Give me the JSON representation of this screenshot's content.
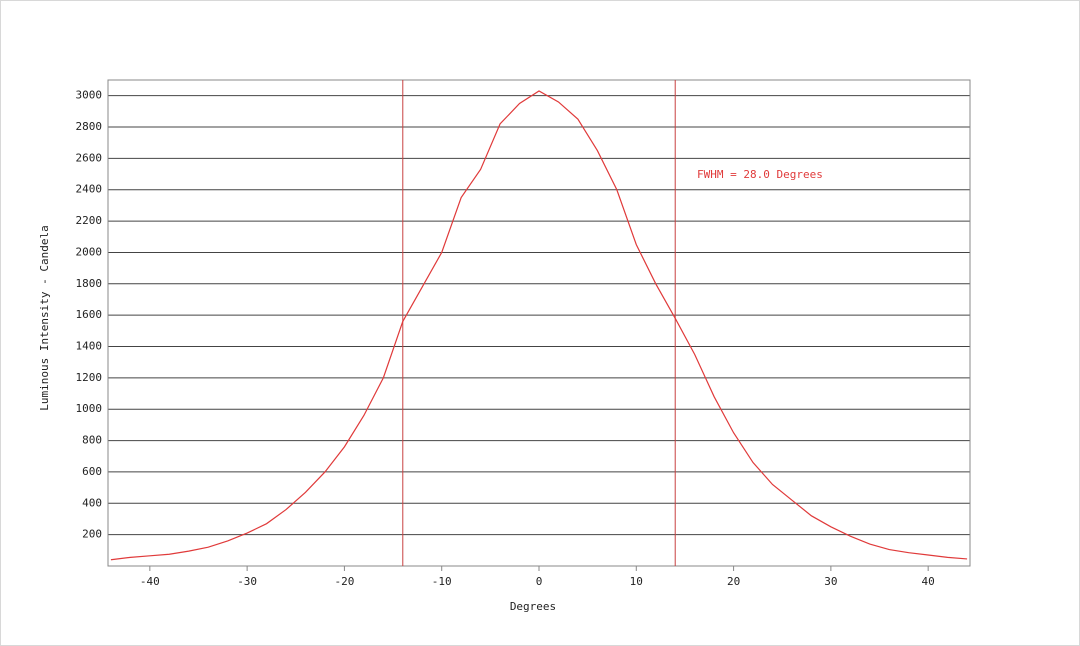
{
  "chart_data": {
    "type": "line",
    "x_label": "Degrees",
    "y_label": "Luminous Intensity - Candela",
    "annotation": "FWHM = 28.0 Degrees",
    "x": [
      -44,
      -42,
      -40,
      -38,
      -36,
      -34,
      -32,
      -30,
      -28,
      -26,
      -24,
      -22,
      -20,
      -18,
      -16,
      -14,
      -12,
      -10,
      -8,
      -6,
      -4,
      -2,
      0,
      2,
      4,
      6,
      8,
      10,
      12,
      14,
      16,
      18,
      20,
      22,
      24,
      26,
      28,
      30,
      32,
      34,
      36,
      38,
      40,
      42,
      44
    ],
    "series": [
      {
        "color": "#e03a3a",
        "values": [
          40,
          55,
          65,
          75,
          95,
          120,
          160,
          210,
          270,
          360,
          470,
          600,
          760,
          960,
          1200,
          1560,
          1780,
          2000,
          2350,
          2530,
          2820,
          2950,
          3030,
          2960,
          2850,
          2650,
          2400,
          2050,
          1800,
          1580,
          1350,
          1080,
          850,
          660,
          520,
          420,
          320,
          250,
          190,
          140,
          105,
          85,
          70,
          55,
          45
        ]
      }
    ],
    "fwhm_lines": [
      -14,
      14
    ],
    "fwhm_color": "#c84040",
    "xlim": [
      -44.3,
      44.3
    ],
    "ylim": [
      0,
      3100
    ],
    "xticks": [
      -40,
      -30,
      -20,
      -10,
      0,
      10,
      20,
      30,
      40
    ],
    "yticks": [
      200,
      400,
      600,
      800,
      1000,
      1200,
      1400,
      1600,
      1800,
      2000,
      2200,
      2400,
      2600,
      2800,
      3000
    ],
    "grid": true
  }
}
